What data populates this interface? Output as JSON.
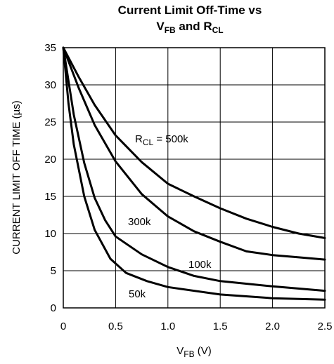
{
  "chart_data": {
    "type": "line",
    "title_line1": "Current Limit Off-Time vs",
    "title_line2": {
      "v": "V",
      "v_sub": "FB",
      "and": " and ",
      "r": "R",
      "r_sub": "CL"
    },
    "xlabel": {
      "main": "V",
      "sub": "FB",
      "unit": " (V)"
    },
    "ylabel": "CURRENT LIMIT OFF TIME (µs)",
    "xlim": [
      0,
      2.5
    ],
    "ylim": [
      0,
      35
    ],
    "x_ticks": [
      "0",
      "0.5",
      "1.0",
      "1.5",
      "2.0",
      "2.5"
    ],
    "x_tick_values": [
      0,
      0.5,
      1.0,
      1.5,
      2.0,
      2.5
    ],
    "y_ticks": [
      "0",
      "5",
      "10",
      "15",
      "20",
      "25",
      "30",
      "35"
    ],
    "y_tick_values": [
      0,
      5,
      10,
      15,
      20,
      25,
      30,
      35
    ],
    "grid": true,
    "series": [
      {
        "name": "500k",
        "x": [
          0,
          0.15,
          0.3,
          0.5,
          0.75,
          1.0,
          1.25,
          1.5,
          1.75,
          2.0,
          2.25,
          2.5
        ],
        "y": [
          35,
          31,
          27.3,
          23.2,
          19.6,
          16.7,
          15,
          13.4,
          12,
          10.9,
          10,
          9.4
        ]
      },
      {
        "name": "300k",
        "x": [
          0,
          0.15,
          0.3,
          0.5,
          0.75,
          1.0,
          1.25,
          1.5,
          1.75,
          2.0,
          2.25,
          2.5
        ],
        "y": [
          35,
          29.5,
          24.6,
          19.7,
          15.3,
          12.3,
          10.3,
          8.9,
          7.6,
          7.1,
          6.8,
          6.5
        ]
      },
      {
        "name": "100k",
        "x": [
          0,
          0.1,
          0.2,
          0.3,
          0.4,
          0.5,
          0.75,
          1.0,
          1.25,
          1.5,
          2.0,
          2.5
        ],
        "y": [
          35,
          26,
          19.5,
          14.8,
          11.8,
          9.6,
          7.2,
          5.5,
          4.3,
          3.6,
          2.9,
          2.3
        ]
      },
      {
        "name": "50k",
        "x": [
          0,
          0.05,
          0.1,
          0.2,
          0.3,
          0.45,
          0.6,
          0.8,
          1.0,
          1.5,
          2.0,
          2.5
        ],
        "y": [
          35,
          27.5,
          22,
          15,
          10.5,
          6.6,
          4.7,
          3.6,
          2.8,
          1.8,
          1.3,
          1.1
        ]
      }
    ],
    "annotations": [
      {
        "id": "500k",
        "prefix": "R",
        "sub": "CL",
        "text": " = 500k"
      },
      {
        "id": "300k",
        "text": "300k"
      },
      {
        "id": "100k",
        "text": "100k"
      },
      {
        "id": "50k",
        "text": "50k"
      }
    ],
    "colors": {
      "line": "#000000",
      "grid": "#000000",
      "background": "#ffffff"
    }
  }
}
